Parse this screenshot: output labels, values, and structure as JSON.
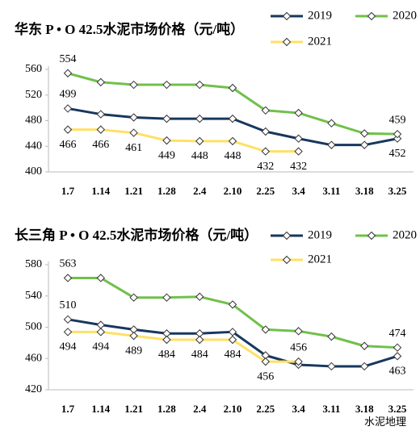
{
  "chart_data": [
    {
      "type": "line",
      "title": "华东  P • O 42.5水泥市场价格（元/吨）",
      "categories": [
        "1.7",
        "1.14",
        "1.21",
        "1.28",
        "2.4",
        "2.10",
        "2.25",
        "3.4",
        "3.11",
        "3.18",
        "3.25"
      ],
      "ylim": [
        400,
        560
      ],
      "yticks": [
        400,
        440,
        480,
        520,
        560
      ],
      "series": [
        {
          "name": "2019",
          "color": "#17375e",
          "label_color": "#17375e",
          "labeled": [
            0,
            10
          ],
          "values": [
            499,
            490,
            485,
            483,
            483,
            483,
            463,
            452,
            442,
            442,
            452
          ]
        },
        {
          "name": "2020",
          "color": "#70c04a",
          "label_color": "#2e8b2e",
          "labeled": [
            0,
            10
          ],
          "values": [
            554,
            540,
            536,
            536,
            536,
            531,
            496,
            492,
            476,
            460,
            459
          ]
        },
        {
          "name": "2021",
          "color": "#ffe066",
          "label_color": "#e8812a",
          "labeled": [
            0,
            1,
            2,
            3,
            4,
            5,
            6,
            7
          ],
          "values": [
            466,
            466,
            461,
            449,
            448,
            448,
            432,
            432,
            null,
            null,
            null
          ]
        }
      ]
    },
    {
      "type": "line",
      "title": "长三角  P • O 42.5水泥市场价格（元/吨）",
      "categories": [
        "1.7",
        "1.14",
        "1.21",
        "1.28",
        "2.4",
        "2.10",
        "2.25",
        "3.4",
        "3.11",
        "3.18",
        "3.25"
      ],
      "ylim": [
        420,
        580
      ],
      "yticks": [
        420,
        460,
        500,
        540,
        580
      ],
      "series": [
        {
          "name": "2019",
          "color": "#17375e",
          "label_color": "#17375e",
          "labeled": [
            0,
            10
          ],
          "values": [
            510,
            503,
            497,
            492,
            492,
            494,
            464,
            452,
            450,
            450,
            463
          ]
        },
        {
          "name": "2020",
          "color": "#70c04a",
          "label_color": "#2e8b2e",
          "labeled": [
            0,
            10
          ],
          "values": [
            563,
            563,
            538,
            538,
            539,
            529,
            497,
            495,
            488,
            476,
            474
          ]
        },
        {
          "name": "2021",
          "color": "#ffe066",
          "label_color": "#e8812a",
          "labeled": [
            0,
            1,
            2,
            3,
            4,
            5,
            6,
            7
          ],
          "values": [
            494,
            494,
            489,
            484,
            484,
            484,
            456,
            456,
            null,
            null,
            null
          ]
        }
      ]
    }
  ],
  "watermark": "水泥地理"
}
